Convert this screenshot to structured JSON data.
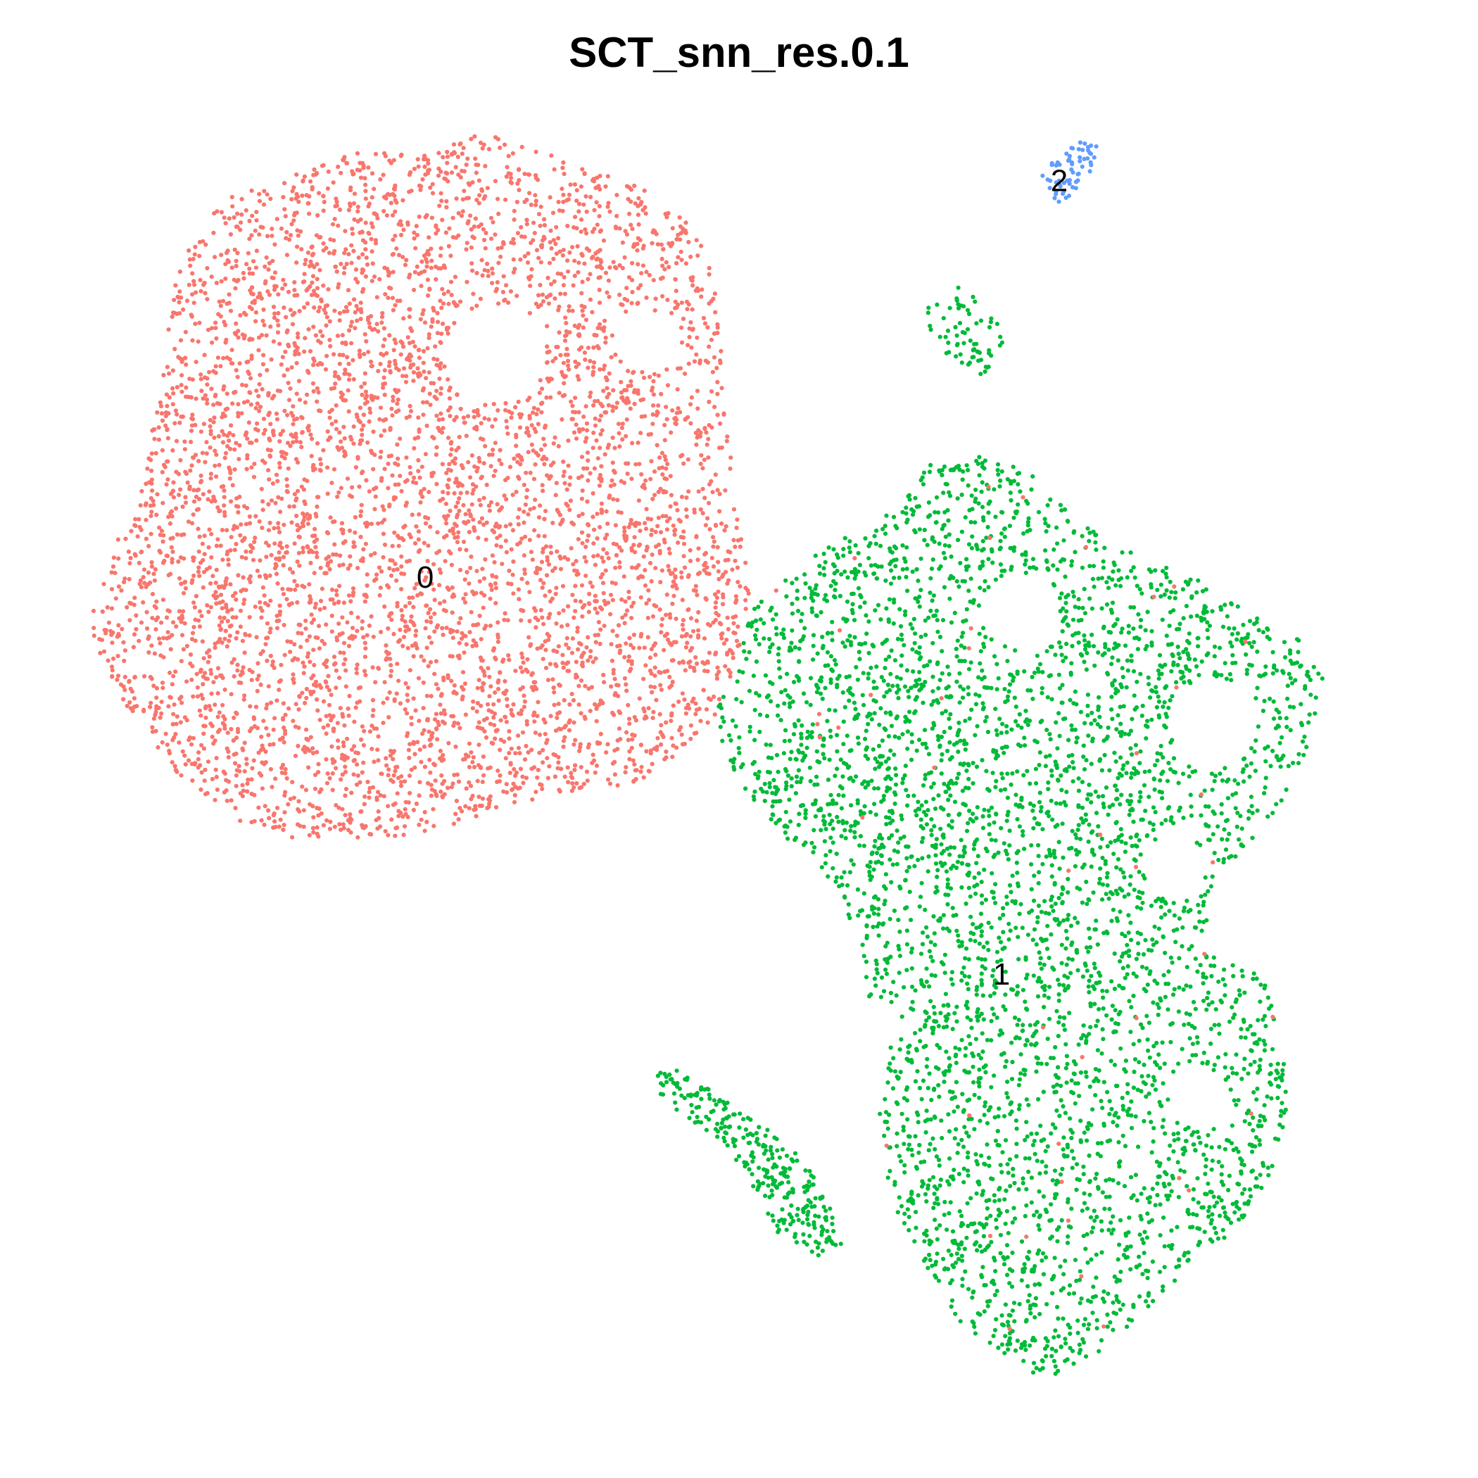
{
  "chart_data": {
    "type": "scatter",
    "title": "SCT_snn_res.0.1",
    "xlabel": "",
    "ylabel": "",
    "axes_visible": false,
    "grid": false,
    "legend": "none",
    "xlim": [
      0,
      100
    ],
    "ylim": [
      0,
      100
    ],
    "clusters": [
      {
        "id": "0",
        "label": "0",
        "color": "#F8766D",
        "label_pos": [
          25.5,
          65.5
        ],
        "approx_points": 5200
      },
      {
        "id": "1",
        "label": "1",
        "color": "#00BA38",
        "label_pos": [
          70.5,
          33.0
        ],
        "approx_points": 4700
      },
      {
        "id": "2",
        "label": "2",
        "color": "#619CFF",
        "label_pos": [
          75.0,
          98.0
        ],
        "approx_points": 60
      }
    ],
    "regions": {
      "cluster_0": [
        [
          -1,
          62
        ],
        [
          1,
          68
        ],
        [
          3,
          71
        ],
        [
          4,
          77
        ],
        [
          5,
          83
        ],
        [
          6,
          90
        ],
        [
          8,
          95
        ],
        [
          10,
          97
        ],
        [
          14,
          98
        ],
        [
          18,
          100
        ],
        [
          22,
          101
        ],
        [
          26,
          101
        ],
        [
          30,
          102
        ],
        [
          34,
          101
        ],
        [
          38,
          99
        ],
        [
          42,
          98
        ],
        [
          46,
          95
        ],
        [
          48,
          91
        ],
        [
          48.5,
          86
        ],
        [
          49,
          80
        ],
        [
          49.5,
          74
        ],
        [
          50,
          70
        ],
        [
          51,
          64
        ],
        [
          49.5,
          58
        ],
        [
          48,
          54
        ],
        [
          45,
          50.5
        ],
        [
          41,
          48.5
        ],
        [
          36,
          48
        ],
        [
          32,
          47
        ],
        [
          28,
          45.5
        ],
        [
          24,
          44.5
        ],
        [
          19,
          44
        ],
        [
          14,
          44.5
        ],
        [
          10,
          46
        ],
        [
          7,
          48.5
        ],
        [
          5,
          51
        ],
        [
          3,
          54
        ],
        [
          1,
          57
        ]
      ],
      "cluster_1": [
        [
          51,
          63
        ],
        [
          54,
          66
        ],
        [
          58,
          69
        ],
        [
          62,
          71
        ],
        [
          65,
          75
        ],
        [
          69,
          76
        ],
        [
          73,
          74
        ],
        [
          76,
          71
        ],
        [
          80,
          68
        ],
        [
          85,
          66
        ],
        [
          91,
          62
        ],
        [
          95,
          60
        ],
        [
          96,
          56
        ],
        [
          94,
          50
        ],
        [
          91,
          45
        ],
        [
          87,
          40
        ],
        [
          86,
          35
        ],
        [
          91,
          33
        ],
        [
          92,
          29
        ],
        [
          93,
          24
        ],
        [
          92,
          18
        ],
        [
          90,
          13
        ],
        [
          86,
          10
        ],
        [
          82,
          6
        ],
        [
          78,
          2
        ],
        [
          74,
          0
        ],
        [
          71,
          1.5
        ],
        [
          67,
          5
        ],
        [
          64,
          10
        ],
        [
          62,
          14
        ],
        [
          61,
          20
        ],
        [
          61,
          26
        ],
        [
          60,
          32
        ],
        [
          59,
          37
        ],
        [
          57,
          41
        ],
        [
          54,
          44
        ],
        [
          51,
          47
        ],
        [
          49,
          51
        ],
        [
          48,
          55
        ],
        [
          50,
          59
        ]
      ],
      "cluster_1_branch": [
        [
          44,
          23
        ],
        [
          43,
          26
        ],
        [
          46,
          25
        ],
        [
          50,
          22
        ],
        [
          53,
          20
        ],
        [
          55,
          18
        ],
        [
          57,
          15
        ],
        [
          58,
          11
        ],
        [
          56,
          10
        ],
        [
          53,
          12
        ],
        [
          51,
          16
        ],
        [
          49,
          19
        ]
      ],
      "cluster_1_top": [
        [
          66,
          90
        ],
        [
          64,
          87
        ],
        [
          66,
          84
        ],
        [
          69,
          82
        ],
        [
          71,
          85
        ],
        [
          70,
          88
        ]
      ],
      "cluster_2": [
        [
          73.5,
          98.5
        ],
        [
          74.5,
          96
        ],
        [
          76,
          97
        ],
        [
          77.5,
          99
        ],
        [
          78,
          101
        ],
        [
          76.5,
          101.5
        ],
        [
          75,
          100.5
        ]
      ]
    }
  }
}
